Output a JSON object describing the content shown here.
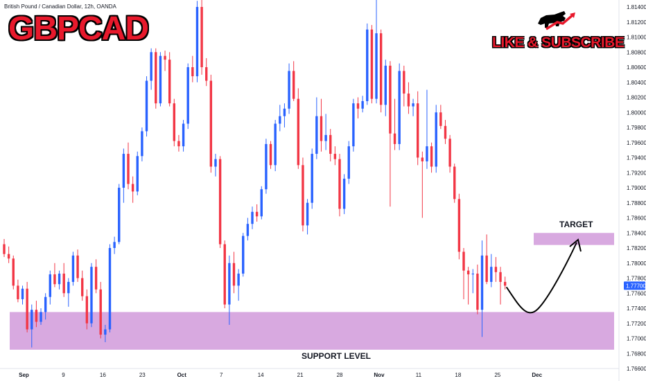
{
  "header": {
    "instrument": "British Pound / Canadian Dollar, 12h, OANDA",
    "symbol": "GBPCAD",
    "promo": "LIKE & SUBSCRIBE"
  },
  "zones": {
    "target_label": "TARGET",
    "support_label": "SUPPORT LEVEL"
  },
  "colors": {
    "up": "#2962ff",
    "down": "#f23645",
    "zone": "#ce93d8",
    "symbol_red": "#e8192c"
  },
  "icons": [
    "bull-logo-icon",
    "projection-arrow-icon"
  ],
  "chart_data": {
    "type": "candlestick",
    "timeframe": "12h",
    "x_tick_labels": [
      "Sep",
      "9",
      "16",
      "23",
      "Oct",
      "7",
      "14",
      "21",
      "28",
      "Nov",
      "11",
      "18",
      "25",
      "Dec"
    ],
    "y_tick_labels": [
      "1.81400",
      "1.81200",
      "1.81000",
      "1.80800",
      "1.80600",
      "1.80400",
      "1.80200",
      "1.80000",
      "1.79800",
      "1.79600",
      "1.79400",
      "1.79200",
      "1.79000",
      "1.78800",
      "1.78600",
      "1.78400",
      "1.78200",
      "1.78000",
      "1.77800",
      "1.77600",
      "1.77400",
      "1.77200",
      "1.77000",
      "1.76800",
      "1.76600"
    ],
    "ylim": [
      1.766,
      1.8152
    ],
    "current_price": "1.77700",
    "support_zone": [
      1.7685,
      1.7735
    ],
    "target_zone": [
      1.7824,
      1.784
    ],
    "candles": [
      [
        1.7825,
        1.7832,
        1.7808,
        1.7812
      ],
      [
        1.7812,
        1.7822,
        1.78,
        1.7806
      ],
      [
        1.7806,
        1.781,
        1.7765,
        1.777
      ],
      [
        1.777,
        1.7778,
        1.7748,
        1.7752
      ],
      [
        1.7752,
        1.777,
        1.7745,
        1.7766
      ],
      [
        1.7766,
        1.7775,
        1.7708,
        1.7712
      ],
      [
        1.7712,
        1.7745,
        1.7688,
        1.7738
      ],
      [
        1.7738,
        1.775,
        1.7715,
        1.7722
      ],
      [
        1.7722,
        1.774,
        1.7718,
        1.7735
      ],
      [
        1.7735,
        1.776,
        1.7725,
        1.7755
      ],
      [
        1.7755,
        1.779,
        1.7745,
        1.7785
      ],
      [
        1.7785,
        1.78,
        1.7768,
        1.7772
      ],
      [
        1.7772,
        1.779,
        1.7765,
        1.7786
      ],
      [
        1.7786,
        1.78,
        1.7755,
        1.776
      ],
      [
        1.776,
        1.778,
        1.7742,
        1.7775
      ],
      [
        1.7775,
        1.7815,
        1.777,
        1.781
      ],
      [
        1.781,
        1.7818,
        1.7775,
        1.778
      ],
      [
        1.778,
        1.779,
        1.775,
        1.7756
      ],
      [
        1.7756,
        1.7765,
        1.7712,
        1.772
      ],
      [
        1.772,
        1.78,
        1.7715,
        1.7795
      ],
      [
        1.7795,
        1.7805,
        1.776,
        1.7765
      ],
      [
        1.7765,
        1.7775,
        1.77,
        1.7705
      ],
      [
        1.7705,
        1.7718,
        1.7695,
        1.7712
      ],
      [
        1.7712,
        1.7825,
        1.7708,
        1.782
      ],
      [
        1.782,
        1.7835,
        1.7812,
        1.7828
      ],
      [
        1.7828,
        1.7905,
        1.7825,
        1.79
      ],
      [
        1.79,
        1.7952,
        1.788,
        1.7945
      ],
      [
        1.7945,
        1.796,
        1.7898,
        1.7905
      ],
      [
        1.7905,
        1.7915,
        1.788,
        1.7895
      ],
      [
        1.7895,
        1.7948,
        1.789,
        1.7942
      ],
      [
        1.7942,
        1.798,
        1.7935,
        1.7975
      ],
      [
        1.7975,
        1.8048,
        1.7968,
        1.8042
      ],
      [
        1.8042,
        1.8085,
        1.803,
        1.808
      ],
      [
        1.808,
        1.8085,
        1.8005,
        1.8012
      ],
      [
        1.8012,
        1.808,
        1.8008,
        1.8075
      ],
      [
        1.8075,
        1.8082,
        1.8055,
        1.807
      ],
      [
        1.807,
        1.808,
        1.8008,
        1.8012
      ],
      [
        1.8012,
        1.8018,
        1.7955,
        1.7962
      ],
      [
        1.7962,
        1.797,
        1.7948,
        1.7955
      ],
      [
        1.7955,
        1.799,
        1.7948,
        1.7985
      ],
      [
        1.7985,
        1.8065,
        1.7978,
        1.806
      ],
      [
        1.806,
        1.8075,
        1.804,
        1.8048
      ],
      [
        1.8048,
        1.8148,
        1.804,
        1.814
      ],
      [
        1.814,
        1.815,
        1.805,
        1.806
      ],
      [
        1.806,
        1.8072,
        1.8035,
        1.8042
      ],
      [
        1.8042,
        1.805,
        1.792,
        1.7928
      ],
      [
        1.7928,
        1.7945,
        1.7915,
        1.7938
      ],
      [
        1.7938,
        1.7942,
        1.782,
        1.7825
      ],
      [
        1.7825,
        1.783,
        1.774,
        1.7745
      ],
      [
        1.7745,
        1.781,
        1.7718,
        1.78
      ],
      [
        1.78,
        1.7815,
        1.776,
        1.777
      ],
      [
        1.777,
        1.7792,
        1.775,
        1.7786
      ],
      [
        1.7786,
        1.784,
        1.7782,
        1.7836
      ],
      [
        1.7836,
        1.786,
        1.783,
        1.7852
      ],
      [
        1.7852,
        1.7875,
        1.7845,
        1.7868
      ],
      [
        1.7868,
        1.7878,
        1.7855,
        1.7862
      ],
      [
        1.7862,
        1.7902,
        1.7858,
        1.7898
      ],
      [
        1.7898,
        1.7965,
        1.7892,
        1.7958
      ],
      [
        1.7958,
        1.7962,
        1.7925,
        1.793
      ],
      [
        1.793,
        1.799,
        1.7922,
        1.7985
      ],
      [
        1.7985,
        1.801,
        1.7975,
        1.7995
      ],
      [
        1.7995,
        1.8012,
        1.798,
        1.8005
      ],
      [
        1.8005,
        1.8065,
        1.7998,
        1.8055
      ],
      [
        1.8055,
        1.8068,
        1.8015,
        1.8018
      ],
      [
        1.8018,
        1.8032,
        1.7925,
        1.793
      ],
      [
        1.793,
        1.794,
        1.7842,
        1.785
      ],
      [
        1.785,
        1.7885,
        1.7838,
        1.788
      ],
      [
        1.788,
        1.7952,
        1.7872,
        1.7945
      ],
      [
        1.7945,
        1.802,
        1.7938,
        1.7995
      ],
      [
        1.7995,
        1.8018,
        1.7948,
        1.7962
      ],
      [
        1.7962,
        1.7998,
        1.795,
        1.797
      ],
      [
        1.797,
        1.7978,
        1.7935,
        1.7945
      ],
      [
        1.7945,
        1.7955,
        1.793,
        1.7938
      ],
      [
        1.7938,
        1.7945,
        1.7862,
        1.7872
      ],
      [
        1.7872,
        1.7918,
        1.7865,
        1.7912
      ],
      [
        1.7912,
        1.7962,
        1.7905,
        1.7955
      ],
      [
        1.7955,
        1.8018,
        1.7948,
        1.8012
      ],
      [
        1.8012,
        1.802,
        1.7992,
        1.8005
      ],
      [
        1.8005,
        1.8022,
        1.8,
        1.8015
      ],
      [
        1.8015,
        1.8118,
        1.801,
        1.811
      ],
      [
        1.811,
        1.8116,
        1.8012,
        1.8018
      ],
      [
        1.8018,
        1.8152,
        1.8012,
        1.8105
      ],
      [
        1.8105,
        1.811,
        1.8,
        1.801
      ],
      [
        1.801,
        1.807,
        1.7995,
        1.8062
      ],
      [
        1.8062,
        1.8068,
        1.7875,
        1.7972
      ],
      [
        1.7972,
        1.8018,
        1.795,
        1.7958
      ],
      [
        1.7958,
        1.8065,
        1.795,
        1.8055
      ],
      [
        1.8055,
        1.8062,
        1.8008,
        1.8025
      ],
      [
        1.8025,
        1.804,
        1.7998,
        1.8008
      ],
      [
        1.8008,
        1.8018,
        1.7995,
        1.8012
      ],
      [
        1.8012,
        1.8028,
        1.793,
        1.794
      ],
      [
        1.794,
        1.7948,
        1.786,
        1.7935
      ],
      [
        1.7935,
        1.803,
        1.7925,
        1.7955
      ],
      [
        1.7955,
        1.796,
        1.792,
        1.7928
      ],
      [
        1.7928,
        1.801,
        1.792,
        1.8
      ],
      [
        1.8,
        1.801,
        1.7978,
        1.7982
      ],
      [
        1.7982,
        1.799,
        1.7958,
        1.7965
      ],
      [
        1.7965,
        1.797,
        1.792,
        1.7928
      ],
      [
        1.7928,
        1.7932,
        1.788,
        1.7885
      ],
      [
        1.7885,
        1.7892,
        1.7805,
        1.7815
      ],
      [
        1.7815,
        1.782,
        1.7752,
        1.779
      ],
      [
        1.779,
        1.7795,
        1.7745,
        1.7785
      ],
      [
        1.7785,
        1.7792,
        1.776,
        1.7786
      ],
      [
        1.7786,
        1.7798,
        1.7732,
        1.7738
      ],
      [
        1.7738,
        1.783,
        1.7702,
        1.781
      ],
      [
        1.781,
        1.7838,
        1.7772,
        1.7775
      ],
      [
        1.7775,
        1.7812,
        1.7768,
        1.7795
      ],
      [
        1.7795,
        1.7808,
        1.7775,
        1.7788
      ],
      [
        1.7788,
        1.7795,
        1.7745,
        1.7775
      ],
      [
        1.7775,
        1.7782,
        1.7765,
        1.777
      ]
    ]
  }
}
